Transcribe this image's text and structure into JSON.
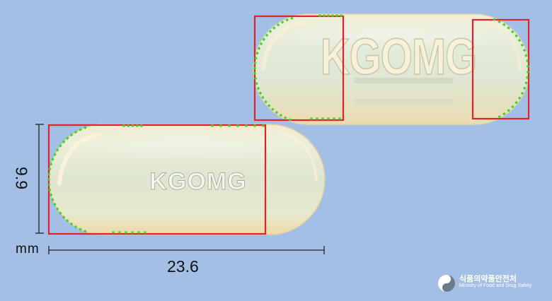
{
  "imprint_front": "KGOMG",
  "imprint_back": "KGOMG",
  "measurement": {
    "unit": "mm",
    "length": "23.6",
    "width": "9.9"
  },
  "agency": {
    "name_korean": "식품의약품안전처",
    "name_english": "Ministry of Food and Drug Safety"
  },
  "colors": {
    "background": "#a3bfe6",
    "capsule": "#e3ead2",
    "bounding_box": "#e0232b",
    "contour_points": "#39d62a"
  }
}
